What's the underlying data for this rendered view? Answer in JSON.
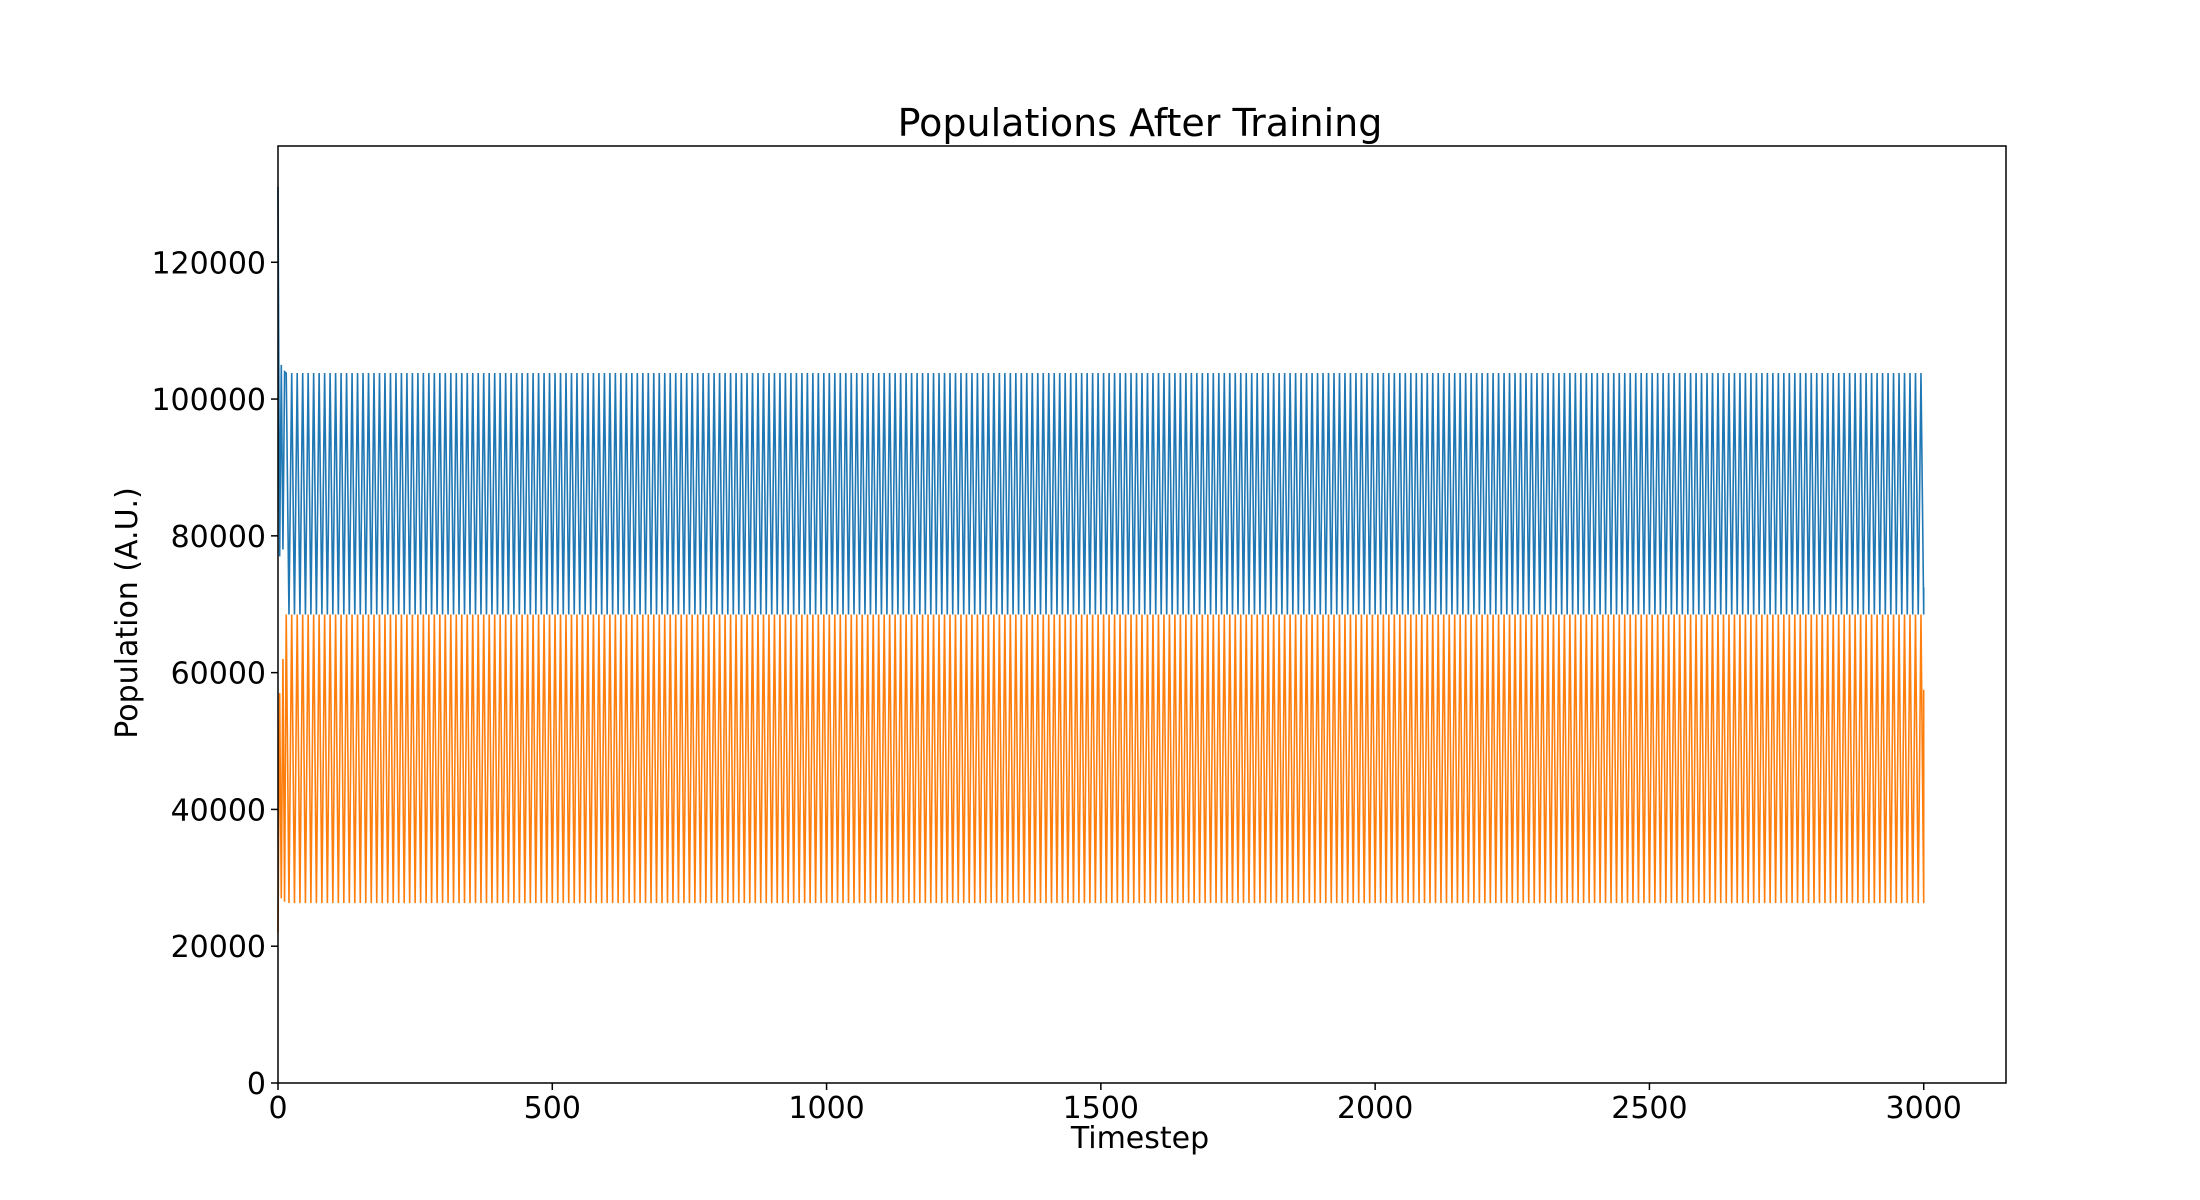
{
  "chart_data": {
    "type": "line",
    "title": "Populations After Training",
    "xlabel": "Timestep",
    "ylabel": "Population (A.U.)",
    "xlim": [
      0,
      3150
    ],
    "ylim": [
      0,
      137000
    ],
    "x_ticks": [
      0,
      500,
      1000,
      1500,
      2000,
      2500,
      3000
    ],
    "y_ticks": [
      0,
      20000,
      40000,
      60000,
      80000,
      100000,
      120000
    ],
    "x_tick_labels": [
      "0",
      "500",
      "1000",
      "1500",
      "2000",
      "2500",
      "3000"
    ],
    "y_tick_labels": [
      "0",
      "20000",
      "40000",
      "60000",
      "80000",
      "100000",
      "120000"
    ],
    "grid": false,
    "legend": "none",
    "series": [
      {
        "color": "#1f77b4",
        "initial_points": [
          [
            0,
            131000
          ],
          [
            3,
            77000
          ],
          [
            6,
            105000
          ],
          [
            9,
            78000
          ],
          [
            12,
            104000
          ]
        ],
        "steady_state": {
          "start": 15,
          "end": 3000,
          "period": 10,
          "min": 68500,
          "max": 103800
        },
        "final_point": [
          3000,
          72500
        ]
      },
      {
        "color": "#ff7f0e",
        "initial_points": [
          [
            0,
            22000
          ],
          [
            3,
            57000
          ],
          [
            6,
            27000
          ],
          [
            9,
            62000
          ],
          [
            12,
            26500
          ]
        ],
        "steady_state": {
          "start": 15,
          "end": 3000,
          "period": 10,
          "min": 26300,
          "max": 68500
        },
        "final_point": [
          3000,
          57500
        ]
      }
    ]
  }
}
